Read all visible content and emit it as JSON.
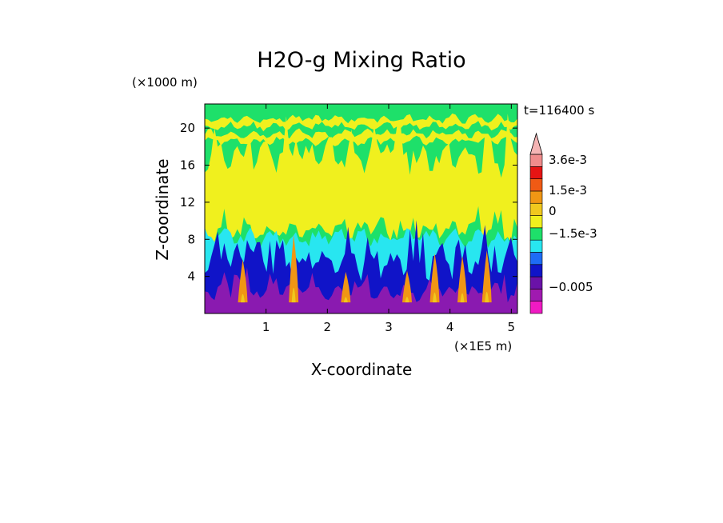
{
  "chart_data": {
    "type": "heatmap",
    "title": "H2O-g Mixing Ratio",
    "xlabel": "X-coordinate",
    "ylabel": "Z-coordinate",
    "x_unit": "(×1E5 m)",
    "y_unit": "(×1000 m)",
    "time_label": "t=116400 s",
    "xlim": [
      0,
      5.1
    ],
    "ylim": [
      0,
      22.6
    ],
    "x_ticks": [
      1,
      2,
      3,
      4,
      5
    ],
    "y_ticks": [
      4,
      8,
      12,
      16,
      20
    ],
    "x_tick_labels": [
      "1",
      "2",
      "3",
      "4",
      "5"
    ],
    "y_tick_labels": [
      "4",
      "8",
      "12",
      "16",
      "20"
    ],
    "colorbar": {
      "colors": [
        "#f01ac3",
        "#a01ab0",
        "#6a12a8",
        "#1014c8",
        "#1e6cf5",
        "#28e6f0",
        "#1ee06a",
        "#f0f01e",
        "#f0c81e",
        "#f09614",
        "#f05a14",
        "#e61414",
        "#f08c8c",
        "#f5b4b4"
      ],
      "labels": [
        "3.6e-3",
        "1.5e-3",
        "0",
        "−1.5e-3",
        "−0.005"
      ],
      "label_values": [
        0.0036,
        0.0015,
        0,
        -0.0015,
        -0.005
      ]
    },
    "bands": [
      {
        "level": "purple",
        "color": "#8a1ab0",
        "z_top_mean": 2.4
      },
      {
        "level": "dark-blue",
        "color": "#1014c8",
        "z_top_mean": 5.6
      },
      {
        "level": "cyan",
        "color": "#28e6f0",
        "z_top_mean": 8.2
      },
      {
        "level": "green",
        "color": "#1ee06a",
        "z_top_mean": 22.6
      },
      {
        "level": "yellow",
        "color": "#f0f01e",
        "z_range": [
          9.0,
          17.0
        ]
      }
    ]
  }
}
